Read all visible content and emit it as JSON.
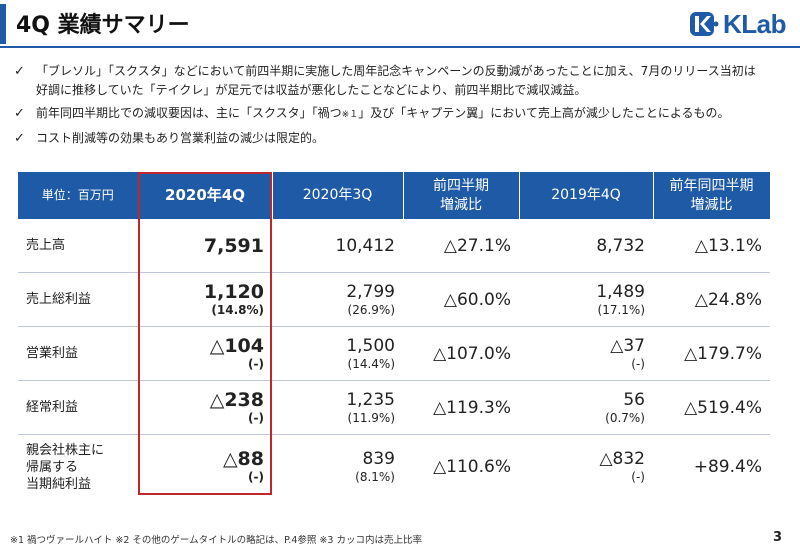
{
  "header": {
    "title": "4Q 業績サマリー",
    "logo_text": "KLab"
  },
  "bullets": [
    {
      "lines": [
        "「ブレソル」「スクスタ」などにおいて前四半期に実施した周年記念キャンペーンの反動減があったことに加え、7月のリリース当初は",
        "好調に推移していた「テイクレ」が足元では収益が悪化したことなどにより、前四半期比で減収減益。"
      ]
    },
    {
      "a": "前年同四半期比での減収要因は、主に「スクスタ」「禍つ",
      "b": "※１",
      "c": "」及び「キャプテン翼」において売上高が減少したことによるもの。"
    },
    {
      "text": "コスト削減等の効果もあり営業利益の減少は限定的。"
    }
  ],
  "table": {
    "headers": {
      "unit": "単位：百万円",
      "q4_2020": "2020年4Q",
      "q3_2020": "2020年3Q",
      "qoq": [
        "前四半期",
        "増減比"
      ],
      "q4_2019": "2019年4Q",
      "yoy": [
        "前年同四半期",
        "増減比"
      ]
    },
    "rows": [
      {
        "label": [
          "売上高"
        ],
        "q4_2020": "7,591",
        "q4_2020_sub": "",
        "q3_2020": "10,412",
        "q3_2020_sub": "",
        "qoq": "△27.1%",
        "q4_2019": "8,732",
        "q4_2019_sub": "",
        "yoy": "△13.1%"
      },
      {
        "label": [
          "売上総利益"
        ],
        "q4_2020": "1,120",
        "q4_2020_sub": "(14.8%)",
        "q3_2020": "2,799",
        "q3_2020_sub": "(26.9%)",
        "qoq": "△60.0%",
        "q4_2019": "1,489",
        "q4_2019_sub": "(17.1%)",
        "yoy": "△24.8%"
      },
      {
        "label": [
          "営業利益"
        ],
        "q4_2020": "△104",
        "q4_2020_sub": "(-)",
        "q3_2020": "1,500",
        "q3_2020_sub": "(14.4%)",
        "qoq": "△107.0%",
        "q4_2019": "△37",
        "q4_2019_sub": "(-)",
        "yoy": "△179.7%"
      },
      {
        "label": [
          "経常利益"
        ],
        "q4_2020": "△238",
        "q4_2020_sub": "(-)",
        "q3_2020": "1,235",
        "q3_2020_sub": "(11.9%)",
        "qoq": "△119.3%",
        "q4_2019": "56",
        "q4_2019_sub": "(0.7%)",
        "yoy": "△519.4%"
      },
      {
        "label": [
          "親会社株主に",
          "帰属する",
          "当期純利益"
        ],
        "q4_2020": "△88",
        "q4_2020_sub": "(-)",
        "q3_2020": "839",
        "q3_2020_sub": "(8.1%)",
        "qoq": "△110.6%",
        "q4_2019": "△832",
        "q4_2019_sub": "(-)",
        "yoy": "+89.4%"
      }
    ]
  },
  "footnote": "※1 禍つヴァールハイト ※2 その他のゲームタイトルの略記は、P.4参照 ※3 カッコ内は売上比率",
  "page_number": "3",
  "colors": {
    "header_blue": "#1f5aa6",
    "highlight_red": "#c0262d"
  },
  "icons": {
    "bullet": "check-icon",
    "logo": "klab-logo-icon"
  }
}
